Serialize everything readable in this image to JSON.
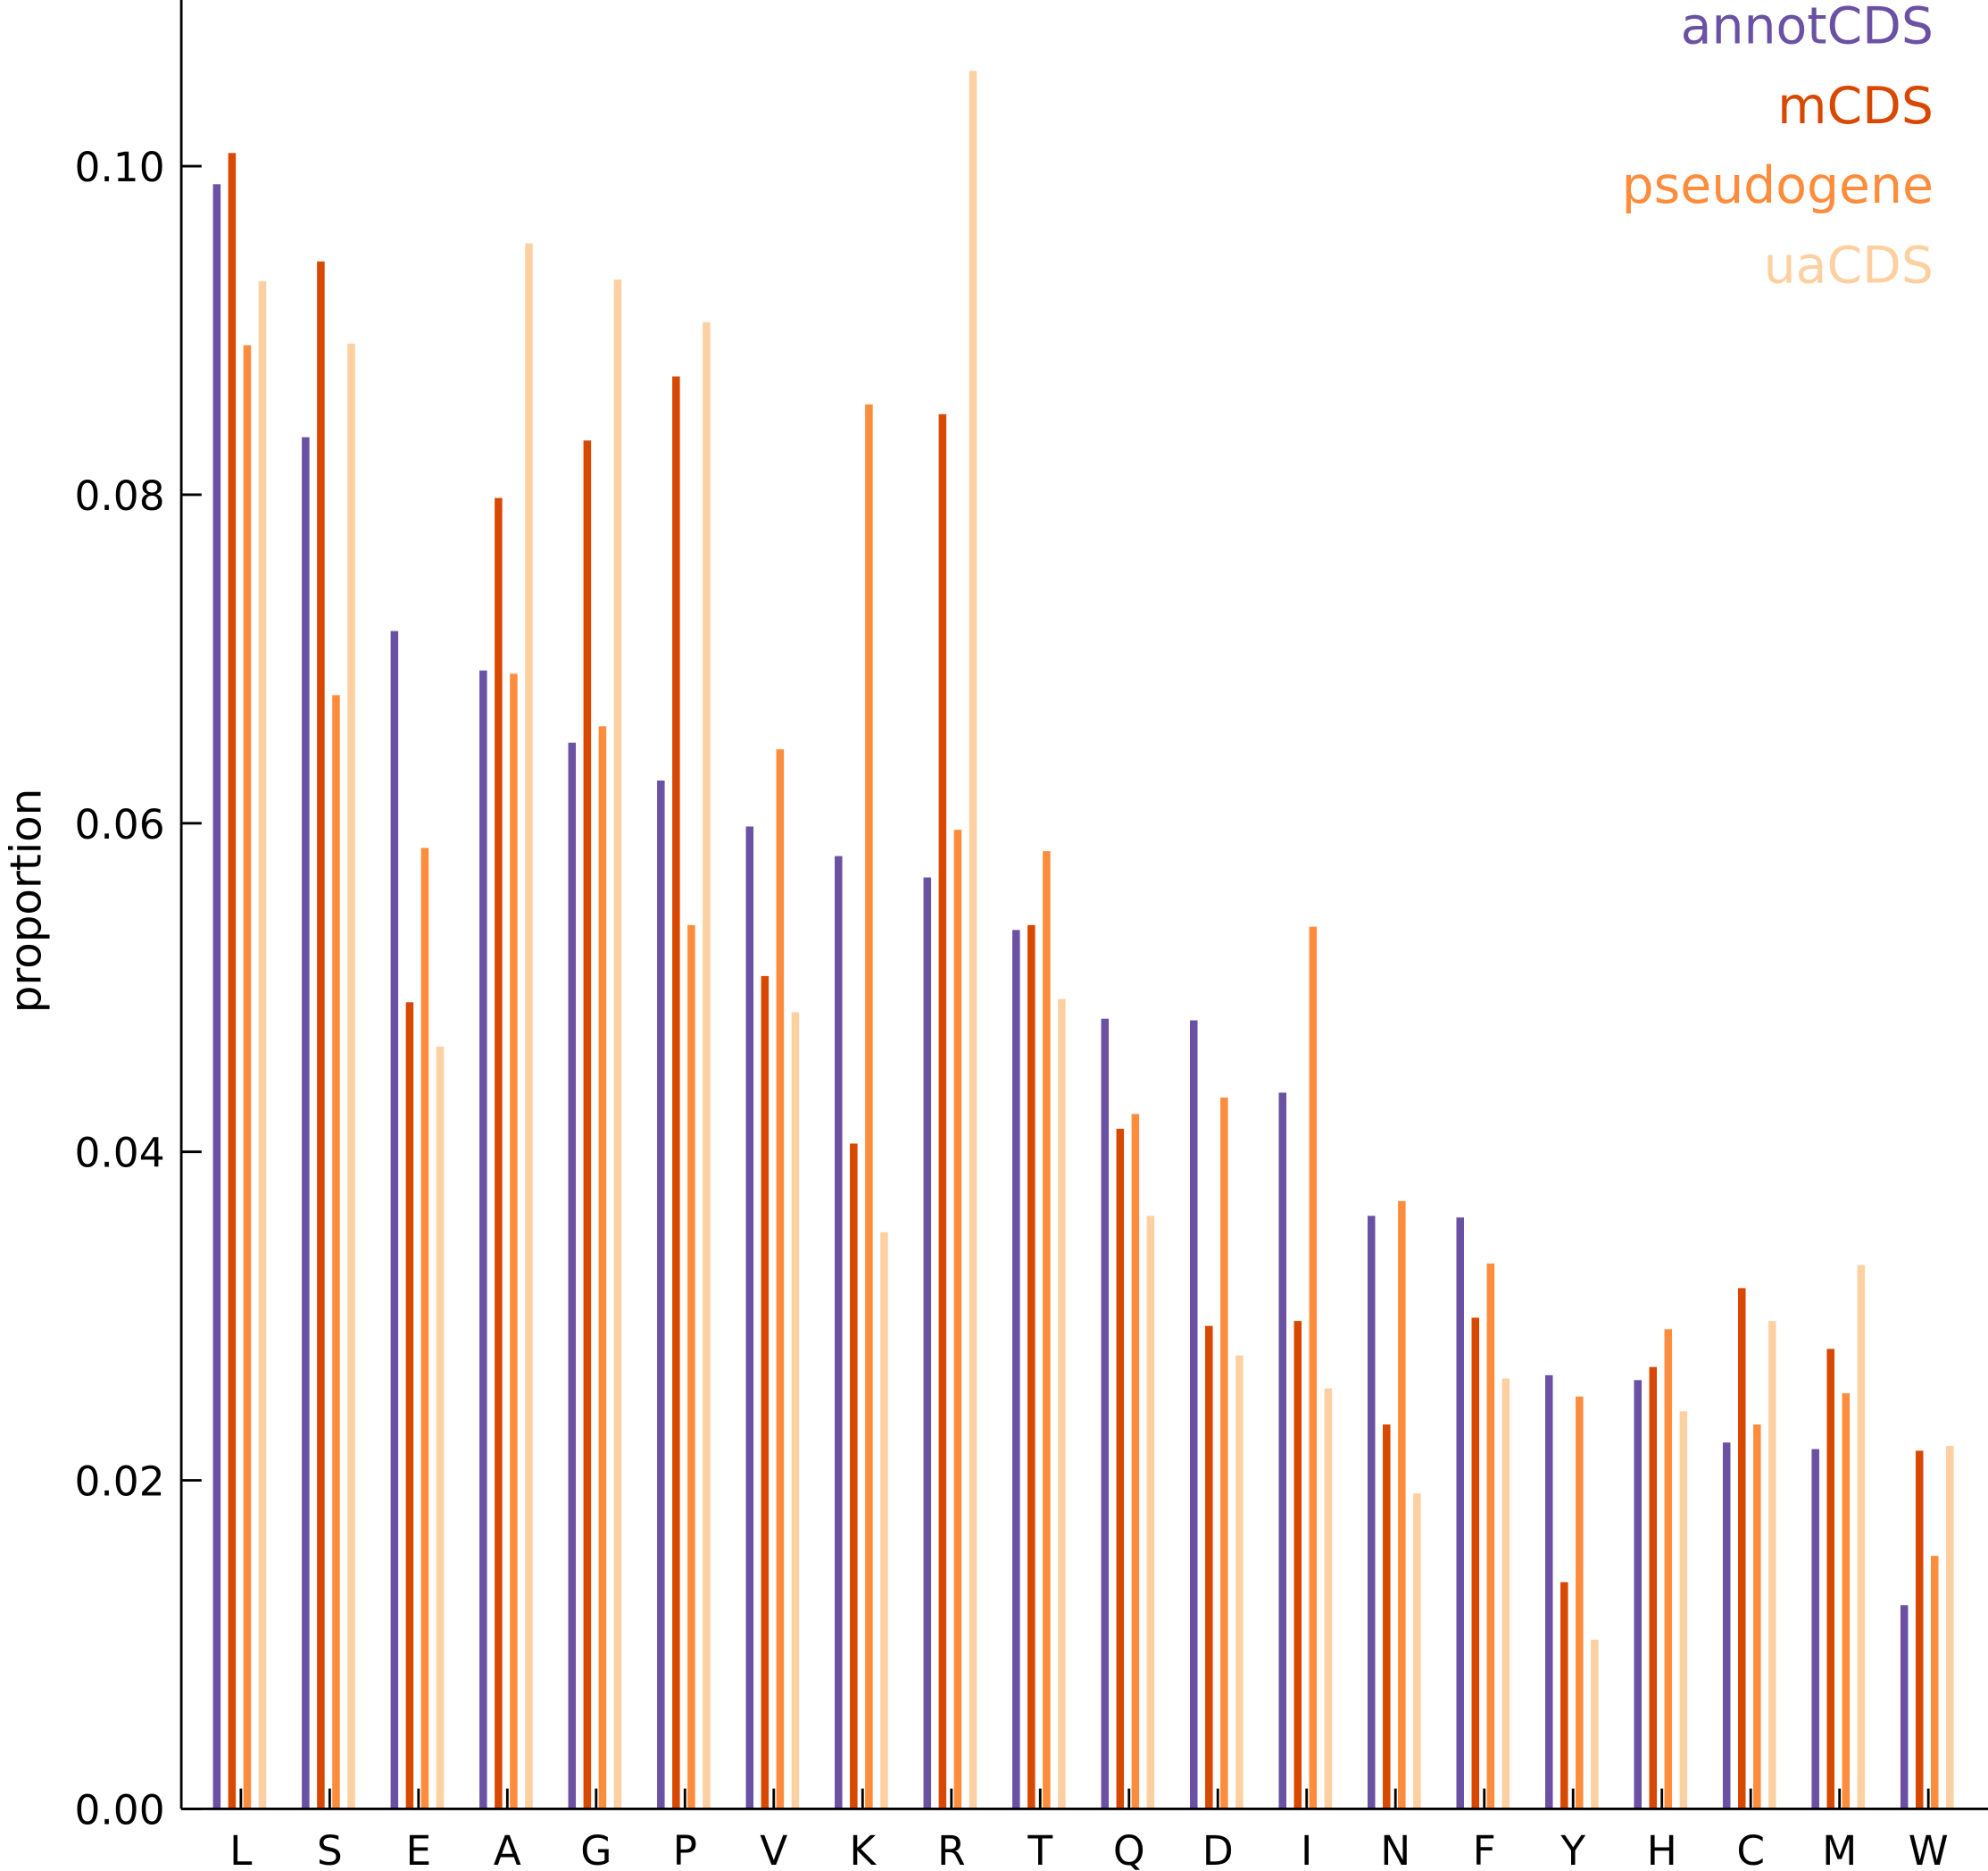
{
  "chart_data": {
    "type": "bar",
    "title": "",
    "xlabel": "",
    "ylabel": "proportion",
    "ylim": [
      0,
      0.11
    ],
    "yticks": [
      "0.00",
      "0.02",
      "0.04",
      "0.06",
      "0.08",
      "0.10"
    ],
    "ytick_values": [
      0,
      0.02,
      0.04,
      0.06,
      0.08,
      0.1
    ],
    "legend_position": "top-right",
    "categories": [
      "L",
      "S",
      "E",
      "A",
      "G",
      "P",
      "V",
      "K",
      "R",
      "T",
      "Q",
      "D",
      "I",
      "N",
      "F",
      "Y",
      "H",
      "C",
      "M",
      "W"
    ],
    "series": [
      {
        "name": "annotCDS",
        "color": "#6a51a3",
        "values": [
          0.0989,
          0.0835,
          0.0717,
          0.0693,
          0.0649,
          0.0626,
          0.0598,
          0.058,
          0.0567,
          0.0535,
          0.0481,
          0.048,
          0.0436,
          0.0361,
          0.036,
          0.0264,
          0.0261,
          0.0223,
          0.0219,
          0.0124
        ]
      },
      {
        "name": "mCDS",
        "color": "#d94801",
        "values": [
          0.1008,
          0.0942,
          0.0491,
          0.0798,
          0.0833,
          0.0872,
          0.0507,
          0.0405,
          0.0849,
          0.0538,
          0.0414,
          0.0294,
          0.0297,
          0.0234,
          0.0299,
          0.0138,
          0.0269,
          0.0317,
          0.028,
          0.0218
        ]
      },
      {
        "name": "pseudogene",
        "color": "#fd8d3c",
        "values": [
          0.0891,
          0.0678,
          0.0585,
          0.0691,
          0.0659,
          0.0538,
          0.0645,
          0.0855,
          0.0596,
          0.0583,
          0.0423,
          0.0433,
          0.0537,
          0.037,
          0.0332,
          0.0251,
          0.0292,
          0.0234,
          0.0253,
          0.0154
        ]
      },
      {
        "name": "uaCDS",
        "color": "#fdd0a2",
        "values": [
          0.093,
          0.0892,
          0.0464,
          0.0953,
          0.0931,
          0.0905,
          0.0485,
          0.0351,
          0.1058,
          0.0493,
          0.0361,
          0.0276,
          0.0256,
          0.0192,
          0.0262,
          0.0103,
          0.0242,
          0.0297,
          0.0331,
          0.0221
        ]
      }
    ]
  }
}
